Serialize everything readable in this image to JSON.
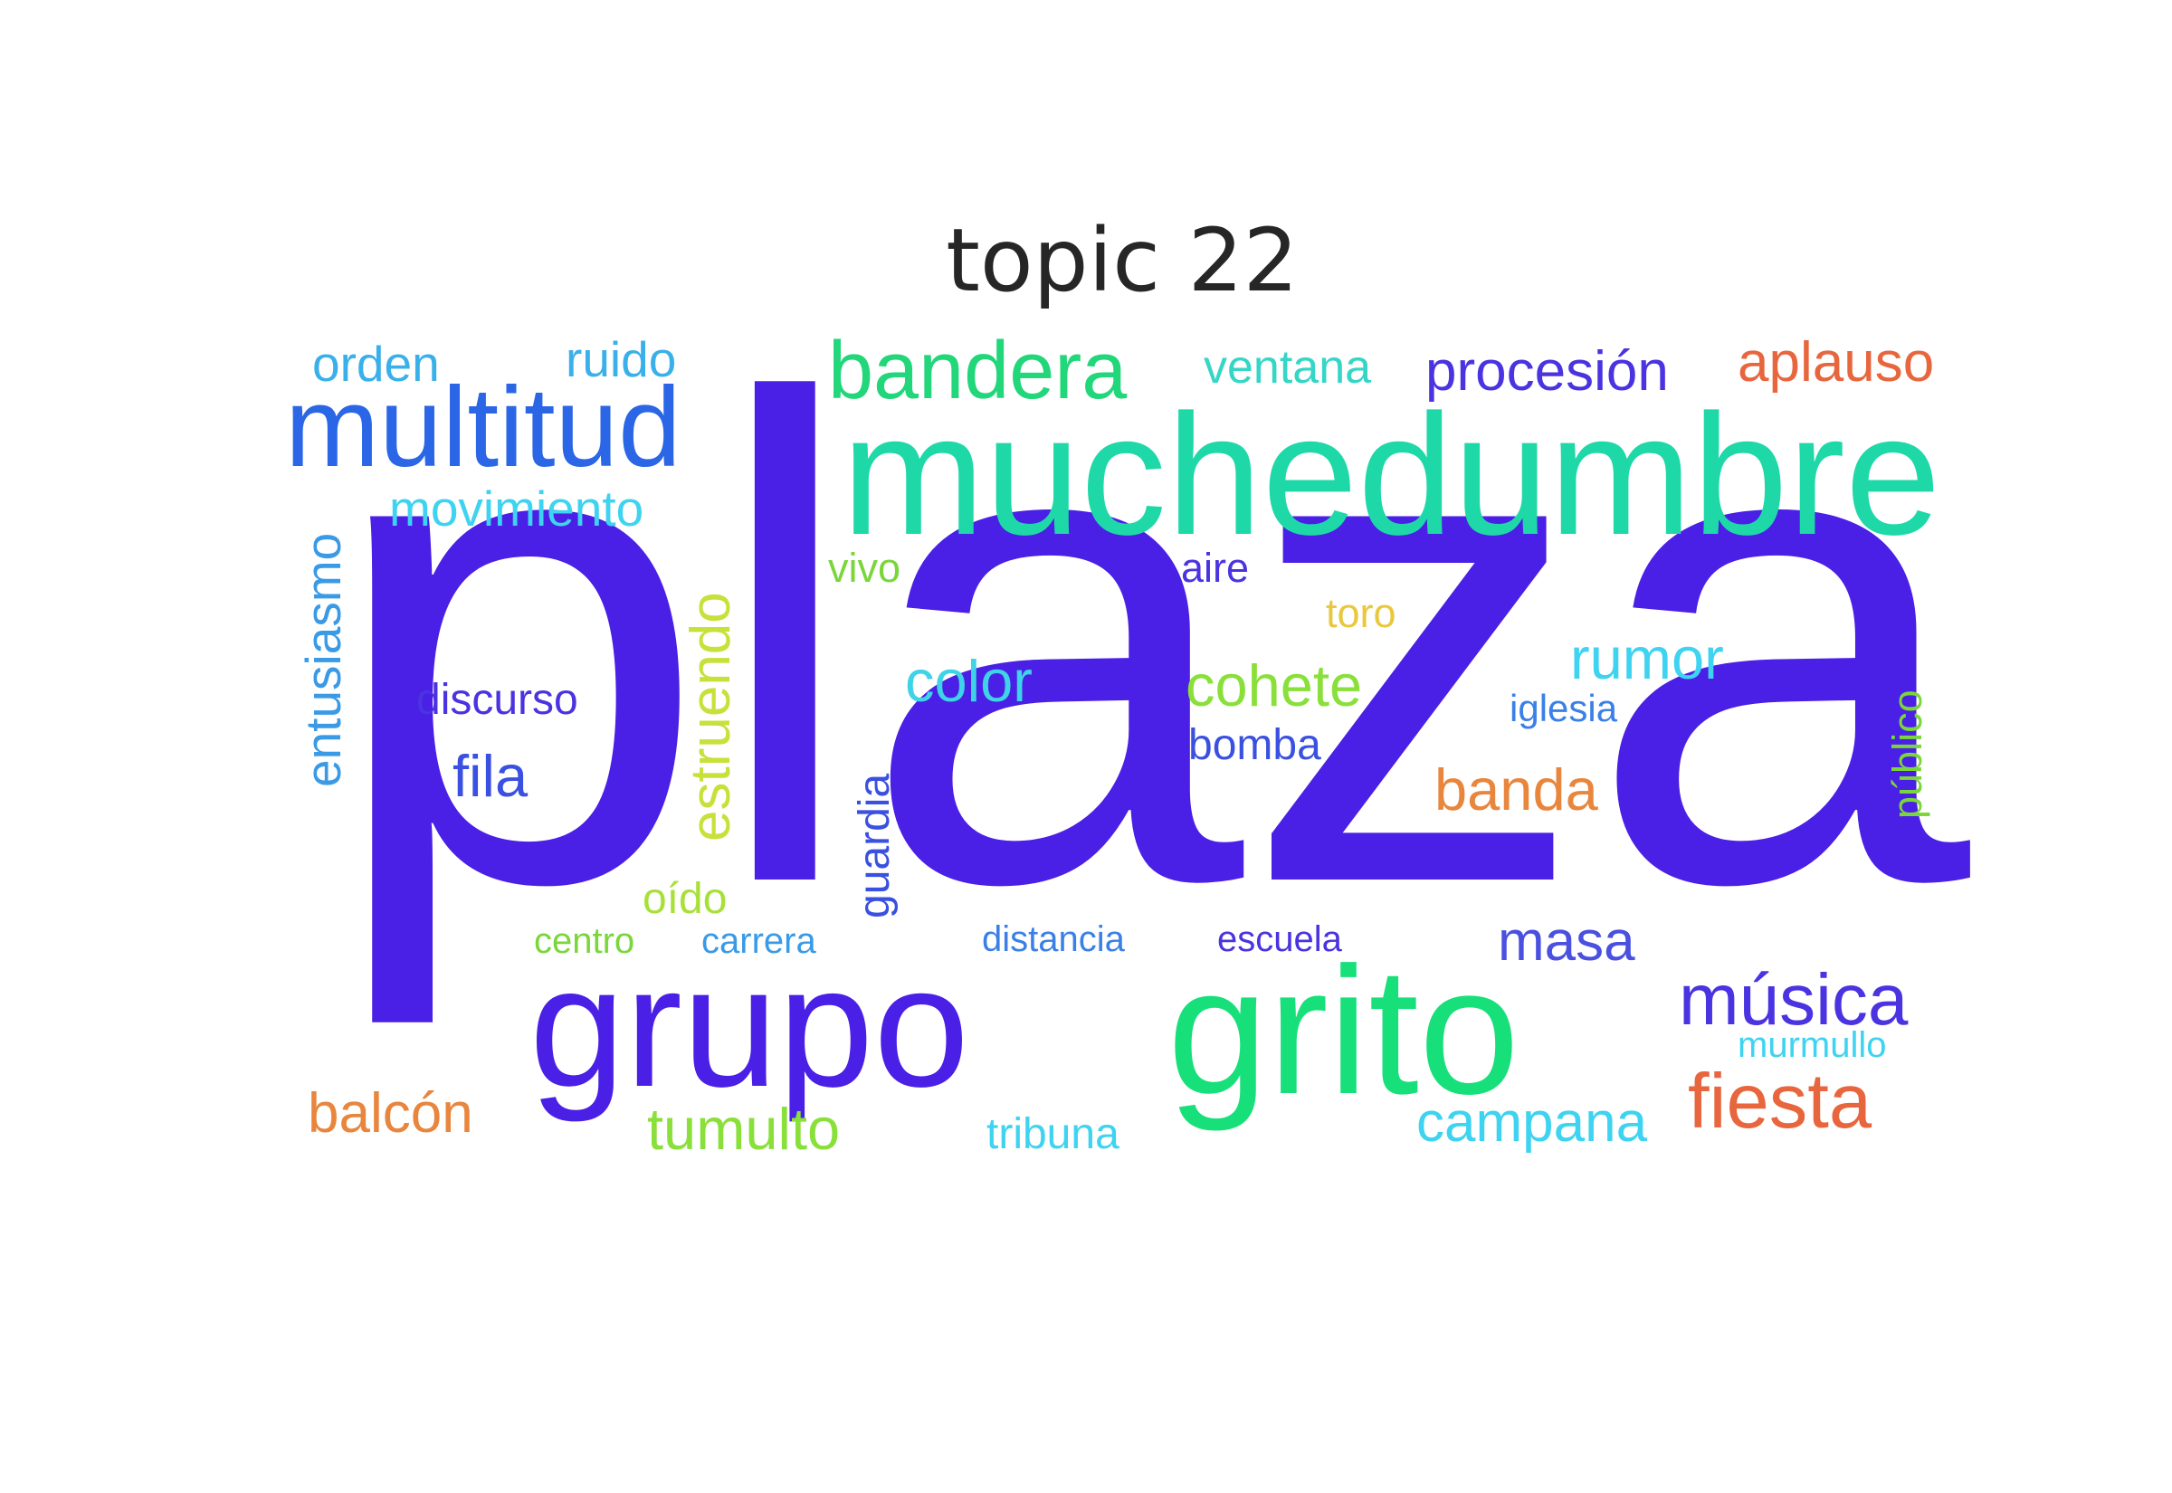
{
  "title": "topic 22",
  "words": [
    {
      "text": "plaza",
      "color": "#4a1fe6",
      "vertical": false
    },
    {
      "text": "muchedumbre",
      "color": "#1fd8a8",
      "vertical": false
    },
    {
      "text": "grito",
      "color": "#17e07a",
      "vertical": false
    },
    {
      "text": "grupo",
      "color": "#4a1fe6",
      "vertical": false
    },
    {
      "text": "multitud",
      "color": "#2a66e6",
      "vertical": false
    },
    {
      "text": "bandera",
      "color": "#22d67a",
      "vertical": false
    },
    {
      "text": "procesión",
      "color": "#4a33e0",
      "vertical": false
    },
    {
      "text": "aplauso",
      "color": "#e8663e",
      "vertical": false
    },
    {
      "text": "ventana",
      "color": "#36d6c6",
      "vertical": false
    },
    {
      "text": "orden",
      "color": "#3ab0ea",
      "vertical": false
    },
    {
      "text": "ruido",
      "color": "#3ab0ea",
      "vertical": false
    },
    {
      "text": "movimiento",
      "color": "#3ed3f0",
      "vertical": false
    },
    {
      "text": "entusiasmo",
      "color": "#3a9ae6",
      "vertical": true
    },
    {
      "text": "vivo",
      "color": "#7ad63a",
      "vertical": false
    },
    {
      "text": "aire",
      "color": "#4a33e0",
      "vertical": false
    },
    {
      "text": "toro",
      "color": "#e8c83e",
      "vertical": false
    },
    {
      "text": "rumor",
      "color": "#3ed3f0",
      "vertical": false
    },
    {
      "text": "estruendo",
      "color": "#c8e03a",
      "vertical": true
    },
    {
      "text": "discurso",
      "color": "#4a33e0",
      "vertical": false
    },
    {
      "text": "color",
      "color": "#3ed3e6",
      "vertical": false
    },
    {
      "text": "cohete",
      "color": "#8ae03a",
      "vertical": false
    },
    {
      "text": "iglesia",
      "color": "#3a80e6",
      "vertical": false
    },
    {
      "text": "público",
      "color": "#7ad63a",
      "vertical": true
    },
    {
      "text": "bomba",
      "color": "#3a50e0",
      "vertical": false
    },
    {
      "text": "fila",
      "color": "#3a50e0",
      "vertical": false
    },
    {
      "text": "guardia",
      "color": "#3a50e0",
      "vertical": true
    },
    {
      "text": "banda",
      "color": "#e8863e",
      "vertical": false
    },
    {
      "text": "oído",
      "color": "#a8e03a",
      "vertical": false
    },
    {
      "text": "centro",
      "color": "#7ad63a",
      "vertical": false
    },
    {
      "text": "carrera",
      "color": "#3a9ae6",
      "vertical": false
    },
    {
      "text": "distancia",
      "color": "#3a80e6",
      "vertical": false
    },
    {
      "text": "escuela",
      "color": "#4a33e0",
      "vertical": false
    },
    {
      "text": "masa",
      "color": "#4a50e0",
      "vertical": false
    },
    {
      "text": "música",
      "color": "#4a33e0",
      "vertical": false
    },
    {
      "text": "murmullo",
      "color": "#3ed3f0",
      "vertical": false
    },
    {
      "text": "balcón",
      "color": "#e8863e",
      "vertical": false
    },
    {
      "text": "tumulto",
      "color": "#8ae03a",
      "vertical": false
    },
    {
      "text": "tribuna",
      "color": "#3ed3f0",
      "vertical": false
    },
    {
      "text": "campana",
      "color": "#3ed3f0",
      "vertical": false
    },
    {
      "text": "fiesta",
      "color": "#e8663e",
      "vertical": false
    }
  ]
}
